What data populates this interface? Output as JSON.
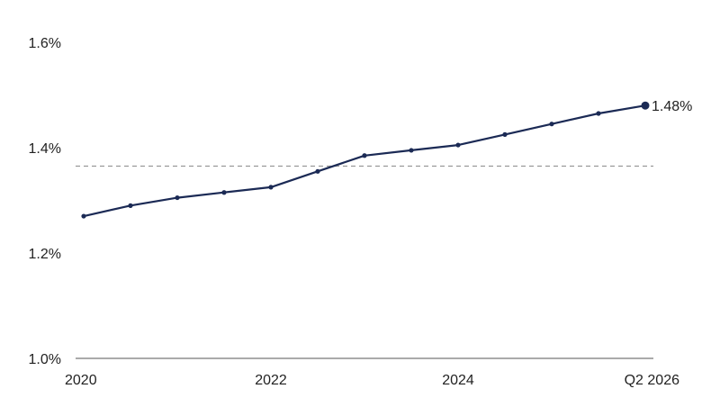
{
  "chart_data": {
    "type": "line",
    "title": "",
    "xlabel": "",
    "ylabel": "",
    "ylim": [
      1.0,
      1.6
    ],
    "y_ticks": [
      {
        "value": 1.6,
        "label": "1.6%"
      },
      {
        "value": 1.4,
        "label": "1.4%"
      },
      {
        "value": 1.2,
        "label": "1.2%"
      },
      {
        "value": 1.0,
        "label": "1.0%"
      }
    ],
    "x_ticks": [
      {
        "index": 0,
        "label": "2020"
      },
      {
        "index": 4,
        "label": "2022"
      },
      {
        "index": 8,
        "label": "2024"
      },
      {
        "index": 12,
        "label": "Q2 2026"
      }
    ],
    "series": [
      {
        "values": [
          1.27,
          1.29,
          1.305,
          1.315,
          1.325,
          1.355,
          1.385,
          1.395,
          1.405,
          1.425,
          1.445,
          1.465,
          1.48
        ]
      }
    ],
    "reference_line": 1.365,
    "end_label": "1.48%",
    "grid": false,
    "colors": {
      "series": "#1b2a55",
      "reference_line": "#999999",
      "axis": "#555555"
    }
  }
}
